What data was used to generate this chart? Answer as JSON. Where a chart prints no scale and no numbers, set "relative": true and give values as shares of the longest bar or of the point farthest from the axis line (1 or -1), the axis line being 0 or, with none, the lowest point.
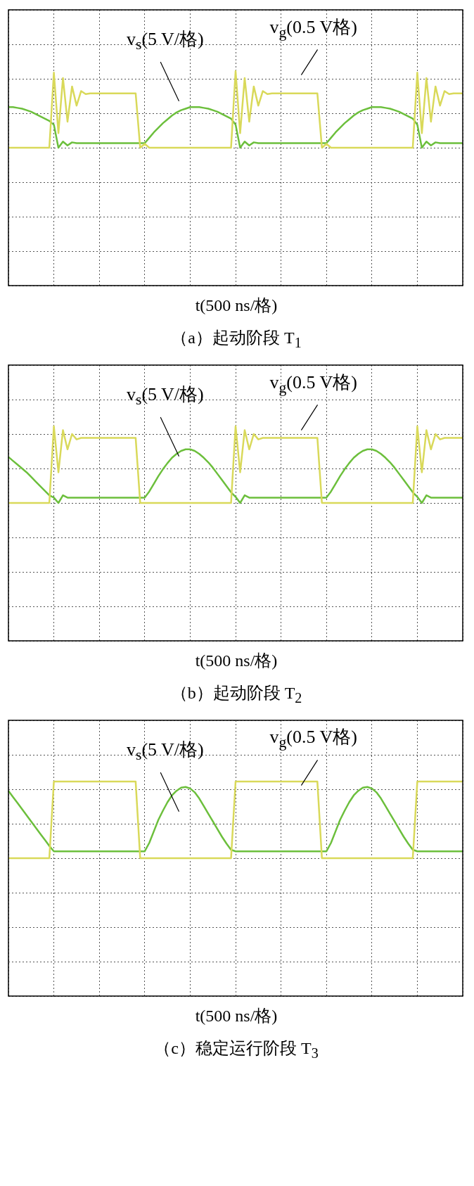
{
  "chart_data": [
    {
      "type": "line",
      "title": "（a）起动阶段 T$_{1}$",
      "xlabel": "t(500 ns/格)",
      "relative": true,
      "grid": true,
      "tick_labels": false,
      "annotations": [
        "v$_{s}$(5 V/格)",
        "v$_{g}$(0.5 V格)"
      ],
      "categories": [
        null,
        null,
        null,
        null,
        null,
        null,
        null,
        null,
        null,
        null,
        null,
        null,
        null,
        null,
        null,
        null,
        null,
        null,
        null,
        null,
        null,
        null,
        null,
        null,
        null,
        null,
        null,
        null,
        null,
        null,
        null,
        null,
        null,
        null,
        null,
        null,
        null,
        null,
        null,
        null,
        null,
        null,
        null,
        null,
        null,
        null,
        null,
        null,
        null,
        null,
        null,
        null,
        null,
        null,
        null,
        null,
        null,
        null,
        null,
        null,
        null,
        null,
        null,
        null,
        null,
        null,
        null,
        null,
        null,
        null,
        null,
        null,
        null,
        null,
        null,
        null,
        null,
        null,
        null,
        null,
        null,
        null,
        null,
        null,
        null,
        null,
        null,
        null,
        null,
        null,
        null,
        null,
        null,
        null,
        null,
        null,
        null,
        null,
        null,
        null,
        null
      ],
      "series": [
        {
          "color": "#d9d95a",
          "values": [
            0,
            0,
            0,
            0,
            0,
            0,
            0,
            0,
            0,
            0,
            0.98,
            0.19,
            0.91,
            0.34,
            0.8,
            0.55,
            0.74,
            0.7,
            0.71,
            0.71,
            0.71,
            0.71,
            0.71,
            0.71,
            0.71,
            0.71,
            0.71,
            0.71,
            0.71,
            0,
            0.05,
            0,
            0,
            0,
            0,
            0,
            0,
            0,
            0,
            0,
            0,
            0,
            0,
            0,
            0,
            0,
            0,
            0,
            0,
            0,
            1,
            0.19,
            0.91,
            0.34,
            0.8,
            0.55,
            0.74,
            0.7,
            0.71,
            0.71,
            0.71,
            0.71,
            0.71,
            0.71,
            0.71,
            0.71,
            0.71,
            0.71,
            0.71,
            0,
            0.05,
            0,
            0,
            0,
            0,
            0,
            0,
            0,
            0,
            0,
            0,
            0,
            0,
            0,
            0,
            0,
            0,
            0,
            0,
            0,
            0.98,
            0.19,
            0.91,
            0.34,
            0.8,
            0.55,
            0.74,
            0.7,
            0.71,
            0.71,
            0.71
          ]
        },
        {
          "color": "#6cbf3c",
          "values": [
            0.53,
            0.53,
            0.52,
            0.51,
            0.49,
            0.47,
            0.44,
            0.41,
            0.38,
            0.35,
            0.3,
            0,
            0.08,
            0.03,
            0.07,
            0.06,
            0.06,
            0.06,
            0.06,
            0.06,
            0.06,
            0.06,
            0.06,
            0.06,
            0.06,
            0.06,
            0.06,
            0.06,
            0.06,
            0.06,
            0.06,
            0.13,
            0.2,
            0.26,
            0.32,
            0.37,
            0.42,
            0.46,
            0.49,
            0.51,
            0.53,
            0.53,
            0.53,
            0.52,
            0.51,
            0.49,
            0.47,
            0.44,
            0.41,
            0.38,
            0.3,
            0,
            0.08,
            0.03,
            0.07,
            0.06,
            0.06,
            0.06,
            0.06,
            0.06,
            0.06,
            0.06,
            0.06,
            0.06,
            0.06,
            0.06,
            0.06,
            0.06,
            0.06,
            0.06,
            0.06,
            0.13,
            0.2,
            0.26,
            0.32,
            0.37,
            0.42,
            0.46,
            0.49,
            0.51,
            0.53,
            0.53,
            0.53,
            0.52,
            0.51,
            0.49,
            0.47,
            0.44,
            0.41,
            0.38,
            0.3,
            0,
            0.08,
            0.03,
            0.07,
            0.06,
            0.06,
            0.06,
            0.06,
            0.06,
            0.06
          ]
        }
      ]
    },
    {
      "type": "line",
      "title": "（b）起动阶段 T$_{2}$",
      "xlabel": "t(500 ns/格)",
      "relative": true,
      "grid": true,
      "tick_labels": false,
      "annotations": [
        "v$_{s}$(5 V/格)",
        "v$_{g}$(0.5 V格)"
      ],
      "categories": [
        null,
        null,
        null,
        null,
        null,
        null,
        null,
        null,
        null,
        null,
        null,
        null,
        null,
        null,
        null,
        null,
        null,
        null,
        null,
        null,
        null,
        null,
        null,
        null,
        null,
        null,
        null,
        null,
        null,
        null,
        null,
        null,
        null,
        null,
        null,
        null,
        null,
        null,
        null,
        null,
        null,
        null,
        null,
        null,
        null,
        null,
        null,
        null,
        null,
        null,
        null,
        null,
        null,
        null,
        null,
        null,
        null,
        null,
        null,
        null,
        null,
        null,
        null,
        null,
        null,
        null,
        null,
        null,
        null,
        null,
        null,
        null,
        null,
        null,
        null,
        null,
        null,
        null,
        null,
        null,
        null,
        null,
        null,
        null,
        null,
        null,
        null,
        null,
        null,
        null,
        null,
        null,
        null,
        null,
        null,
        null,
        null,
        null,
        null,
        null,
        null
      ],
      "series": [
        {
          "color": "#d9d95a",
          "values": [
            0,
            0,
            0,
            0,
            0,
            0,
            0,
            0,
            0,
            0,
            1,
            0.4,
            0.95,
            0.7,
            0.9,
            0.83,
            0.85,
            0.85,
            0.85,
            0.85,
            0.85,
            0.85,
            0.85,
            0.85,
            0.85,
            0.85,
            0.85,
            0.85,
            0.85,
            0,
            0,
            0,
            0,
            0,
            0,
            0,
            0,
            0,
            0,
            0,
            0,
            0,
            0,
            0,
            0,
            0,
            0,
            0,
            0,
            0,
            1,
            0.4,
            0.95,
            0.7,
            0.9,
            0.83,
            0.85,
            0.85,
            0.85,
            0.85,
            0.85,
            0.85,
            0.85,
            0.85,
            0.85,
            0.85,
            0.85,
            0.85,
            0.85,
            0,
            0,
            0,
            0,
            0,
            0,
            0,
            0,
            0,
            0,
            0,
            0,
            0,
            0,
            0,
            0,
            0,
            0,
            0,
            0,
            0,
            1,
            0.4,
            0.95,
            0.7,
            0.9,
            0.83,
            0.85,
            0.85,
            0.85,
            0.85,
            0.85
          ]
        },
        {
          "color": "#6cbf3c",
          "values": [
            0.6,
            0.55,
            0.5,
            0.45,
            0.4,
            0.34,
            0.28,
            0.22,
            0.16,
            0.1,
            0.07,
            0,
            0.1,
            0.07,
            0.07,
            0.07,
            0.07,
            0.07,
            0.07,
            0.07,
            0.07,
            0.07,
            0.07,
            0.07,
            0.07,
            0.07,
            0.07,
            0.07,
            0.07,
            0.07,
            0.07,
            0.15,
            0.25,
            0.35,
            0.44,
            0.52,
            0.59,
            0.64,
            0.68,
            0.7,
            0.7,
            0.68,
            0.64,
            0.59,
            0.53,
            0.46,
            0.38,
            0.3,
            0.22,
            0.14,
            0.08,
            0,
            0.1,
            0.07,
            0.07,
            0.07,
            0.07,
            0.07,
            0.07,
            0.07,
            0.07,
            0.07,
            0.07,
            0.07,
            0.07,
            0.07,
            0.07,
            0.07,
            0.07,
            0.07,
            0.07,
            0.15,
            0.25,
            0.35,
            0.44,
            0.52,
            0.59,
            0.64,
            0.68,
            0.7,
            0.7,
            0.68,
            0.64,
            0.59,
            0.53,
            0.46,
            0.38,
            0.3,
            0.22,
            0.14,
            0.08,
            0,
            0.1,
            0.07,
            0.07,
            0.07,
            0.07,
            0.07,
            0.07,
            0.07,
            0.07
          ]
        }
      ]
    },
    {
      "type": "line",
      "title": "（c）稳定运行阶段 T$_{3}$",
      "xlabel": "t(500 ns/格)",
      "relative": true,
      "grid": true,
      "tick_labels": false,
      "annotations": [
        "v$_{s}$(5 V/格)",
        "v$_{g}$(0.5 V格)"
      ],
      "categories": [
        null,
        null,
        null,
        null,
        null,
        null,
        null,
        null,
        null,
        null,
        null,
        null,
        null,
        null,
        null,
        null,
        null,
        null,
        null,
        null,
        null,
        null,
        null,
        null,
        null,
        null,
        null,
        null,
        null,
        null,
        null,
        null,
        null,
        null,
        null,
        null,
        null,
        null,
        null,
        null,
        null,
        null,
        null,
        null,
        null,
        null,
        null,
        null,
        null,
        null,
        null,
        null,
        null,
        null,
        null,
        null,
        null,
        null,
        null,
        null,
        null,
        null,
        null,
        null,
        null,
        null,
        null,
        null,
        null,
        null,
        null,
        null,
        null,
        null,
        null,
        null,
        null,
        null,
        null,
        null,
        null,
        null,
        null,
        null,
        null,
        null,
        null,
        null,
        null,
        null,
        null,
        null,
        null,
        null,
        null,
        null,
        null,
        null,
        null,
        null,
        null
      ],
      "series": [
        {
          "color": "#d9d95a",
          "values": [
            0,
            0,
            0,
            0,
            0,
            0,
            0,
            0,
            0,
            0,
            1,
            1,
            1,
            1,
            1,
            1,
            1,
            1,
            1,
            1,
            1,
            1,
            1,
            1,
            1,
            1,
            1,
            1,
            1,
            0,
            0,
            0,
            0,
            0,
            0,
            0,
            0,
            0,
            0,
            0,
            0,
            0,
            0,
            0,
            0,
            0,
            0,
            0,
            0,
            0,
            1,
            1,
            1,
            1,
            1,
            1,
            1,
            1,
            1,
            1,
            1,
            1,
            1,
            1,
            1,
            1,
            1,
            1,
            1,
            0,
            0,
            0,
            0,
            0,
            0,
            0,
            0,
            0,
            0,
            0,
            0,
            0,
            0,
            0,
            0,
            0,
            0,
            0,
            0,
            0,
            1,
            1,
            1,
            1,
            1,
            1,
            1,
            1,
            1,
            1,
            1
          ]
        },
        {
          "color": "#6cbf3c",
          "values": [
            0.88,
            0.8,
            0.72,
            0.64,
            0.56,
            0.48,
            0.4,
            0.32,
            0.24,
            0.16,
            0.09,
            0.09,
            0.09,
            0.09,
            0.09,
            0.09,
            0.09,
            0.09,
            0.09,
            0.09,
            0.09,
            0.09,
            0.09,
            0.09,
            0.09,
            0.09,
            0.09,
            0.09,
            0.09,
            0.09,
            0.09,
            0.2,
            0.35,
            0.5,
            0.62,
            0.73,
            0.82,
            0.88,
            0.92,
            0.93,
            0.91,
            0.86,
            0.78,
            0.68,
            0.58,
            0.48,
            0.38,
            0.28,
            0.19,
            0.11,
            0.09,
            0.09,
            0.09,
            0.09,
            0.09,
            0.09,
            0.09,
            0.09,
            0.09,
            0.09,
            0.09,
            0.09,
            0.09,
            0.09,
            0.09,
            0.09,
            0.09,
            0.09,
            0.09,
            0.09,
            0.09,
            0.2,
            0.35,
            0.5,
            0.62,
            0.73,
            0.82,
            0.88,
            0.92,
            0.93,
            0.91,
            0.86,
            0.78,
            0.68,
            0.58,
            0.48,
            0.38,
            0.28,
            0.19,
            0.11,
            0.09,
            0.09,
            0.09,
            0.09,
            0.09,
            0.09,
            0.09,
            0.09,
            0.09,
            0.09,
            0.09
          ]
        }
      ]
    }
  ]
}
